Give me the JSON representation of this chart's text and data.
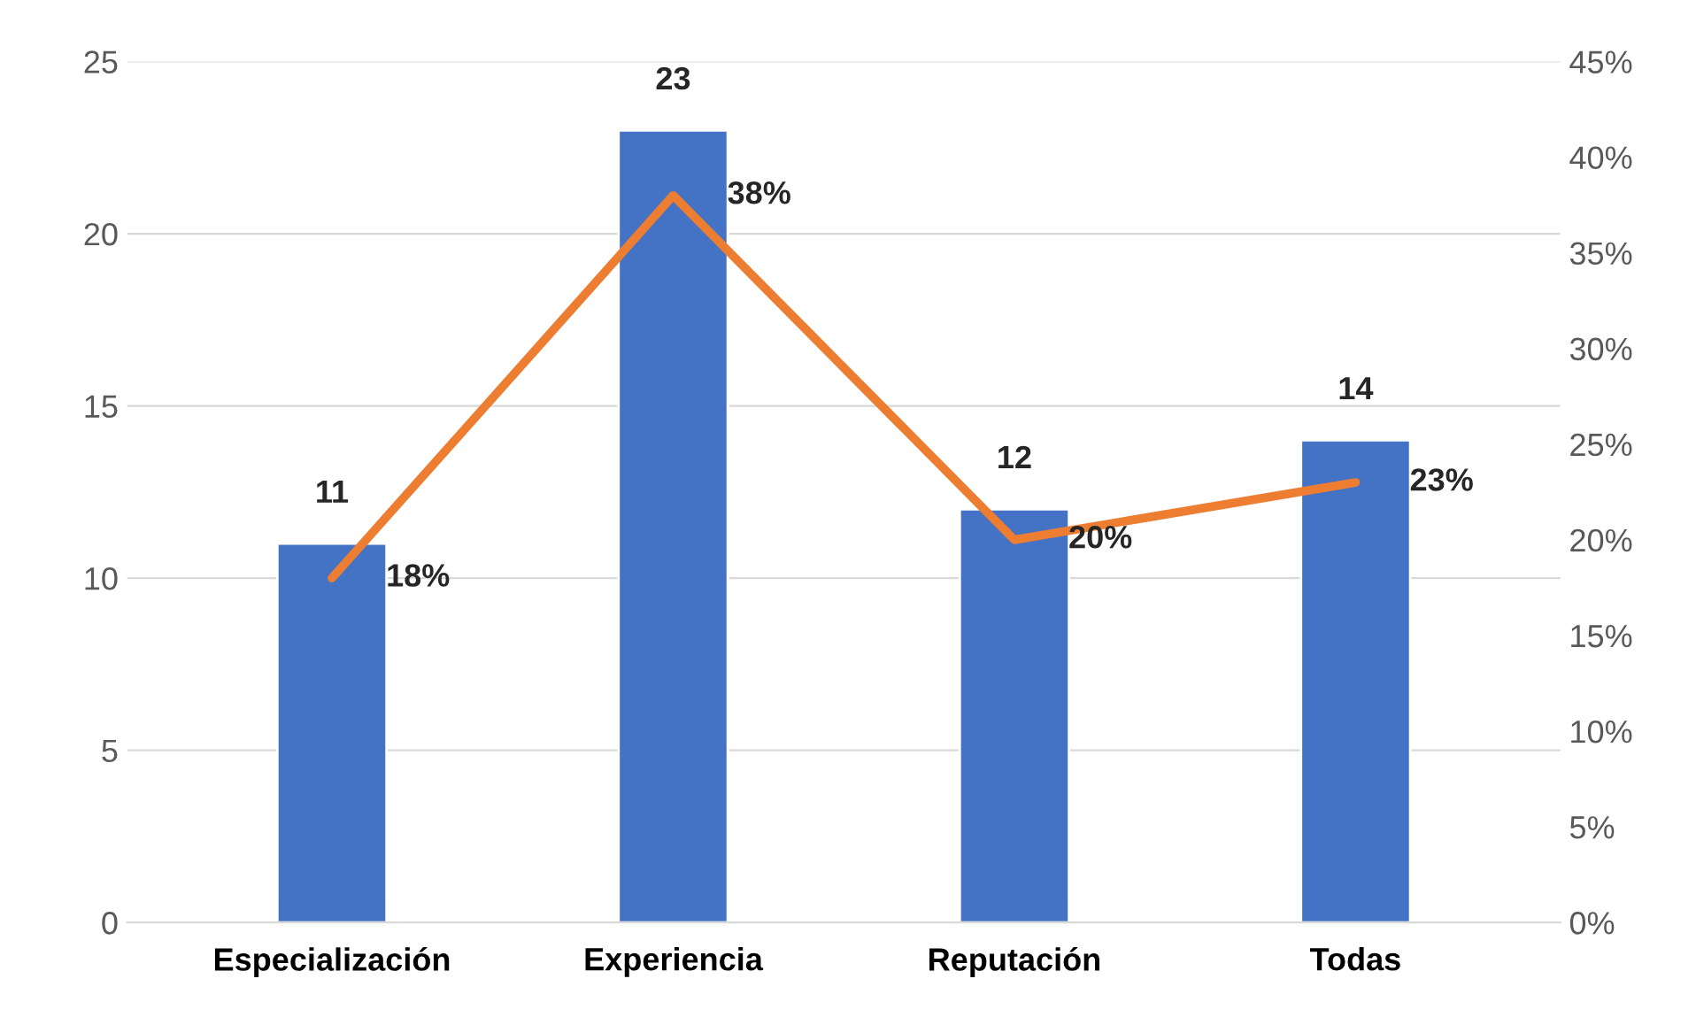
{
  "chart_data": {
    "type": "bar",
    "categories": [
      "Especialización",
      "Experiencia",
      "Reputación",
      "Todas"
    ],
    "series": [
      {
        "color": "#4472c4",
        "values": [
          11,
          23,
          12,
          14
        ],
        "value_labels": [
          "11",
          "23",
          "12",
          "14"
        ]
      },
      {
        "type": "line",
        "axis": "y2",
        "color": "#ed7d31",
        "values": [
          18,
          38,
          20,
          23
        ],
        "value_labels": [
          "18%",
          "38%",
          "20%",
          "23%"
        ],
        "marker": "none"
      }
    ],
    "ylim": [
      0,
      25
    ],
    "yticks": [
      0,
      5,
      10,
      15,
      20,
      25
    ],
    "y2lim": [
      0,
      45
    ],
    "y2ticks": [
      {
        "value": 0,
        "label": "0%"
      },
      {
        "value": 5,
        "label": "5%"
      },
      {
        "value": 10,
        "label": "10%"
      },
      {
        "value": 15,
        "label": "15%"
      },
      {
        "value": 20,
        "label": "20%"
      },
      {
        "value": 25,
        "label": "25%"
      },
      {
        "value": 30,
        "label": "30%"
      },
      {
        "value": 35,
        "label": "35%"
      },
      {
        "value": 40,
        "label": "40%"
      },
      {
        "value": 45,
        "label": "45%"
      }
    ],
    "grid": "y",
    "legend": false
  }
}
